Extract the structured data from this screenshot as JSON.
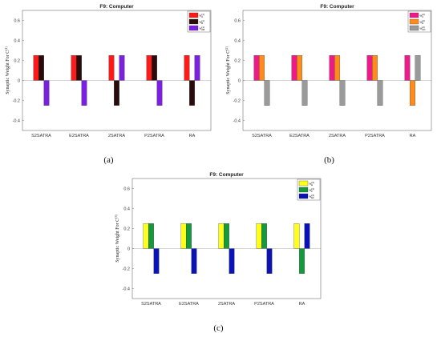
{
  "chart_data": [
    {
      "type": "bar",
      "title": "F9: Computer",
      "ylabel": "Synaptic Weight For C",
      "ylabel_sym": "(1)",
      "caption": "(a)",
      "categories": [
        "S2SATRA",
        "E2SATRA",
        "2SATRA",
        "P2SATRA",
        "RA"
      ],
      "ylim": [
        -0.5,
        0.7
      ],
      "yticks": [
        -0.4,
        -0.2,
        0,
        0.2,
        0.4,
        0.6
      ],
      "grid": false,
      "legend": "top-right",
      "series": [
        {
          "name": "W_A^(1)",
          "color": "#ff1a1a",
          "values": [
            0.25,
            0.25,
            0.25,
            0.25,
            0.25
          ]
        },
        {
          "name": "W_B^(1)",
          "color": "#2a0a0a",
          "values": [
            0.25,
            0.25,
            -0.25,
            0.25,
            -0.25
          ]
        },
        {
          "name": "W_AB^(1)",
          "color": "#7b1fe0",
          "values": [
            -0.25,
            -0.25,
            0.25,
            -0.25,
            0.25
          ]
        }
      ]
    },
    {
      "type": "bar",
      "title": "F9: Computer",
      "ylabel": "Synaptic Weight For C",
      "ylabel_sym": "(2)",
      "caption": "(b)",
      "categories": [
        "S2SATRA",
        "E2SATRA",
        "2SATRA",
        "P2SATRA",
        "RA"
      ],
      "ylim": [
        -0.5,
        0.7
      ],
      "yticks": [
        -0.4,
        -0.2,
        0,
        0.2,
        0.4,
        0.6
      ],
      "grid": false,
      "legend": "top-right",
      "series": [
        {
          "name": "W_C^(2)",
          "color": "#ee1a8a",
          "values": [
            0.25,
            0.25,
            0.25,
            0.25,
            0.25
          ]
        },
        {
          "name": "W_D^(2)",
          "color": "#ff8c1a",
          "values": [
            0.25,
            0.25,
            0.25,
            0.25,
            -0.25
          ]
        },
        {
          "name": "W_CD^(2)",
          "color": "#9a9a9a",
          "values": [
            -0.25,
            -0.25,
            -0.25,
            -0.25,
            0.25
          ]
        }
      ]
    },
    {
      "type": "bar",
      "title": "F9: Computer",
      "ylabel": "Synaptic Weight For C",
      "ylabel_sym": "(3)",
      "caption": "(c)",
      "categories": [
        "S2SATRA",
        "E2SATRA",
        "2SATRA",
        "P2SATRA",
        "RA"
      ],
      "ylim": [
        -0.5,
        0.7
      ],
      "yticks": [
        -0.4,
        -0.2,
        0,
        0.2,
        0.4,
        0.6
      ],
      "grid": false,
      "legend": "top-right",
      "series": [
        {
          "name": "W_E^(3)",
          "color": "#ffff1a",
          "values": [
            0.25,
            0.25,
            0.25,
            0.25,
            0.25
          ]
        },
        {
          "name": "W_F^(3)",
          "color": "#149a3c",
          "values": [
            0.25,
            0.25,
            0.25,
            0.25,
            -0.25
          ]
        },
        {
          "name": "W_EF^(3)",
          "color": "#0a14b4",
          "values": [
            -0.25,
            -0.25,
            -0.25,
            -0.25,
            0.25
          ]
        }
      ]
    }
  ]
}
